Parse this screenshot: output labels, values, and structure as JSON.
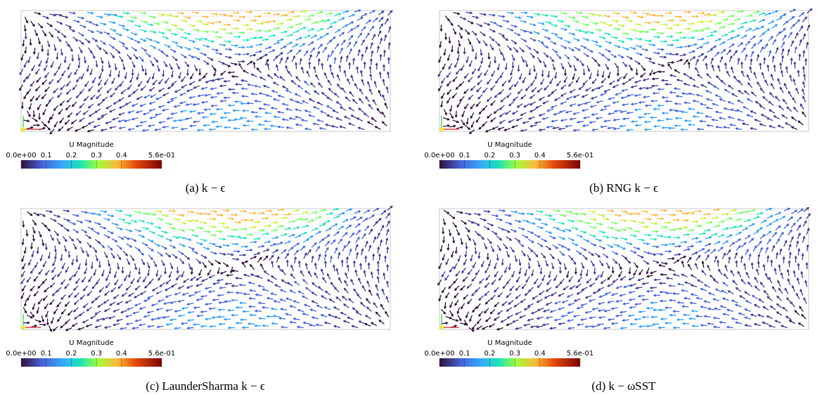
{
  "panels": [
    {
      "caption": "(a) k − ϵ",
      "colorbar": {
        "title": "U Magnitude",
        "range": [
          0,
          0.56
        ],
        "ticks": [
          {
            "value": 0,
            "label": "0.0e+00"
          },
          0.1,
          0.2,
          0.3,
          0.4,
          {
            "value": 0.56,
            "label": "5.6e-01"
          }
        ]
      }
    },
    {
      "caption": "(b) RNG k − ϵ",
      "colorbar": {
        "title": "U Magnitude",
        "range": [
          0,
          0.56
        ],
        "ticks": [
          {
            "value": 0,
            "label": "0.0e+00"
          },
          0.1,
          0.2,
          0.3,
          0.4,
          {
            "value": 0.56,
            "label": "5.6e-01"
          }
        ]
      }
    },
    {
      "caption": "(c) LaunderSharma k − ϵ",
      "colorbar": {
        "title": "U Magnitude",
        "range": [
          0,
          0.56
        ],
        "ticks": [
          {
            "value": 0,
            "label": "0.0e+00"
          },
          0.1,
          0.2,
          0.3,
          0.4,
          {
            "value": 0.56,
            "label": "5.6e-01"
          }
        ]
      }
    },
    {
      "caption": "(d) k − ωSST",
      "colorbar": {
        "title": "U Magnitude",
        "range": [
          0,
          0.56
        ],
        "ticks": [
          {
            "value": 0,
            "label": "0.0e+00"
          },
          0.1,
          0.2,
          0.3,
          0.4,
          {
            "value": 0.56,
            "label": "5.6e-01"
          }
        ]
      }
    }
  ]
}
